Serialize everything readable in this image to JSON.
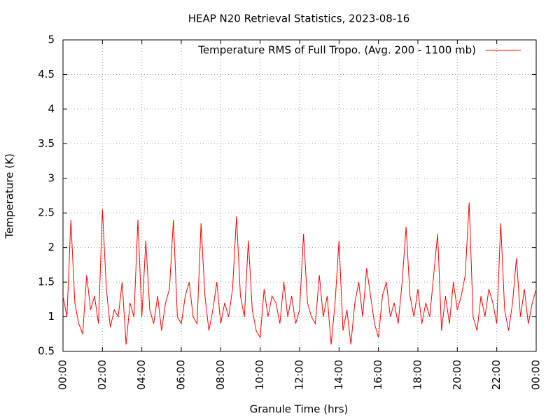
{
  "chart_data": {
    "type": "line",
    "title": "HEAP N20 Retrieval Statistics, 2023-08-16",
    "x_label": "Granule Time (hrs)",
    "y_label": "Temperature (K)",
    "xlim": [
      0,
      24
    ],
    "xticks": [
      {
        "value": 0,
        "label": "00:00"
      },
      {
        "value": 2,
        "label": "02:00"
      },
      {
        "value": 4,
        "label": "04:00"
      },
      {
        "value": 6,
        "label": "06:00"
      },
      {
        "value": 8,
        "label": "08:00"
      },
      {
        "value": 10,
        "label": "10:00"
      },
      {
        "value": 12,
        "label": "12:00"
      },
      {
        "value": 14,
        "label": "14:00"
      },
      {
        "value": 16,
        "label": "16:00"
      },
      {
        "value": 18,
        "label": "18:00"
      },
      {
        "value": 20,
        "label": "20:00"
      },
      {
        "value": 22,
        "label": "22:00"
      },
      {
        "value": 24,
        "label": "00:00"
      }
    ],
    "ylim": [
      0.5,
      5
    ],
    "yticks": [
      0.5,
      1,
      1.5,
      2,
      2.5,
      3,
      3.5,
      4,
      4.5,
      5
    ],
    "grid": true,
    "legend": "top-right",
    "x": [
      0,
      0.2,
      0.4,
      0.6,
      0.8,
      1,
      1.2,
      1.4,
      1.6,
      1.8,
      2,
      2.2,
      2.4,
      2.6,
      2.8,
      3,
      3.2,
      3.4,
      3.6,
      3.8,
      4,
      4.2,
      4.4,
      4.6,
      4.8,
      5,
      5.2,
      5.4,
      5.6,
      5.8,
      6,
      6.2,
      6.4,
      6.6,
      6.8,
      7,
      7.2,
      7.4,
      7.6,
      7.8,
      8,
      8.2,
      8.4,
      8.6,
      8.8,
      9,
      9.2,
      9.4,
      9.6,
      9.8,
      10,
      10.2,
      10.4,
      10.6,
      10.8,
      11,
      11.2,
      11.4,
      11.6,
      11.8,
      12,
      12.2,
      12.4,
      12.6,
      12.8,
      13,
      13.2,
      13.4,
      13.6,
      13.8,
      14,
      14.2,
      14.4,
      14.6,
      14.8,
      15,
      15.2,
      15.4,
      15.6,
      15.8,
      16,
      16.2,
      16.4,
      16.6,
      16.8,
      17,
      17.2,
      17.4,
      17.6,
      17.8,
      18,
      18.2,
      18.4,
      18.6,
      18.8,
      19,
      19.2,
      19.4,
      19.6,
      19.8,
      20,
      20.2,
      20.4,
      20.6,
      20.8,
      21,
      21.2,
      21.4,
      21.6,
      21.8,
      22,
      22.2,
      22.4,
      22.6,
      22.8,
      23,
      23.2,
      23.4,
      23.6,
      23.8,
      24
    ],
    "series": [
      {
        "name": "Temperature RMS of Full Tropo. (Avg. 200 - 1100 mb)",
        "color": "#ff0000",
        "values": [
          1.3,
          1.0,
          2.4,
          1.2,
          0.9,
          0.75,
          1.6,
          1.1,
          1.3,
          0.9,
          2.55,
          1.4,
          0.85,
          1.1,
          1.0,
          1.5,
          0.6,
          1.2,
          1.0,
          2.4,
          1.0,
          2.1,
          1.1,
          0.9,
          1.3,
          0.8,
          1.2,
          1.4,
          2.4,
          1.0,
          0.9,
          1.3,
          1.5,
          1.0,
          0.9,
          2.35,
          1.3,
          0.8,
          1.1,
          1.5,
          0.9,
          1.2,
          1.0,
          1.4,
          2.45,
          1.3,
          1.0,
          2.1,
          1.1,
          0.8,
          0.7,
          1.4,
          1.0,
          1.3,
          1.2,
          0.9,
          1.5,
          1.0,
          1.3,
          0.9,
          1.1,
          2.2,
          1.2,
          1.0,
          0.9,
          1.6,
          1.0,
          1.3,
          0.6,
          1.2,
          2.1,
          0.8,
          1.1,
          0.6,
          1.2,
          1.5,
          1.0,
          1.7,
          1.3,
          0.9,
          0.7,
          1.3,
          1.5,
          1.0,
          1.2,
          0.9,
          1.5,
          2.3,
          1.3,
          1.0,
          1.4,
          0.9,
          1.2,
          1.0,
          1.6,
          2.2,
          0.8,
          1.3,
          0.9,
          1.5,
          1.1,
          1.3,
          1.6,
          2.65,
          1.0,
          0.8,
          1.3,
          1.0,
          1.4,
          1.2,
          0.9,
          2.35,
          1.1,
          0.8,
          1.2,
          1.85,
          1.0,
          1.4,
          0.9,
          1.2,
          1.4
        ]
      }
    ]
  }
}
